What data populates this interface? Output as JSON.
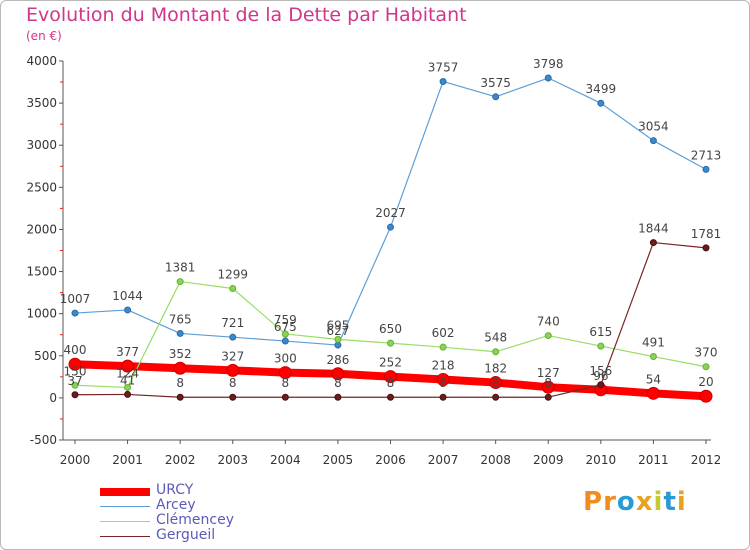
{
  "title": "Evolution du Montant de la Dette par Habitant",
  "subtitle": "(en €)",
  "logo": {
    "text": "Proxiti",
    "letters": [
      "P",
      "r",
      "o",
      "x",
      "i",
      "t",
      "i"
    ],
    "colors": [
      "#f28b1d",
      "#f28b1d",
      "#2a9ad6",
      "#e8a21e",
      "#c7c933",
      "#2a9ad6",
      "#e8a21e"
    ]
  },
  "colors": {
    "URCY": "#ff0000",
    "Arcey": "#5e9ed6",
    "Clémencey": "#99dd66",
    "Gergueil": "#7a2424",
    "title": "#d0368a"
  },
  "chart_data": {
    "type": "line",
    "title": "Evolution du Montant de la Dette par Habitant",
    "subtitle": "(en €)",
    "x": [
      "2000",
      "2001",
      "2002",
      "2003",
      "2004",
      "2005",
      "2006",
      "2007",
      "2008",
      "2009",
      "2010",
      "2011",
      "2012"
    ],
    "ylim": [
      -500,
      4000
    ],
    "yticks": [
      "-500",
      "0",
      "500",
      "1000",
      "1500",
      "2000",
      "2500",
      "3000",
      "3500",
      "4000"
    ],
    "grid": false,
    "legend_position": "bottom-left",
    "series": [
      {
        "name": "URCY",
        "values": [
          400,
          377,
          352,
          327,
          300,
          286,
          252,
          218,
          182,
          127,
          96,
          54,
          20
        ],
        "labels": [
          "400",
          "377",
          "352",
          "327",
          "300",
          "286",
          "252",
          "218",
          "182",
          "127",
          "96",
          "54",
          "20"
        ]
      },
      {
        "name": "Arcey",
        "values": [
          1007,
          1044,
          765,
          721,
          675,
          627,
          2027,
          3757,
          3575,
          3798,
          3499,
          3054,
          2713
        ],
        "labels": [
          "1007",
          "1044",
          "765",
          "721",
          "675",
          "627",
          "2027",
          "3757",
          "3575",
          "3798",
          "3499",
          "3054",
          "2713"
        ]
      },
      {
        "name": "Clémencey",
        "values": [
          150,
          124,
          1381,
          1299,
          759,
          695,
          650,
          602,
          548,
          740,
          615,
          491,
          370
        ],
        "labels": [
          "150",
          "124",
          "1381",
          "1299",
          "759",
          "695",
          "650",
          "602",
          "548",
          "740",
          "615",
          "491",
          "370"
        ]
      },
      {
        "name": "Gergueil",
        "values": [
          37,
          41,
          8,
          8,
          8,
          8,
          8,
          8,
          8,
          8,
          156,
          1844,
          1781
        ],
        "labels": [
          "37",
          "41",
          "8",
          "8",
          "8",
          "8",
          "8",
          "8",
          "8",
          "8",
          "156",
          "1844",
          "1781"
        ]
      }
    ]
  }
}
